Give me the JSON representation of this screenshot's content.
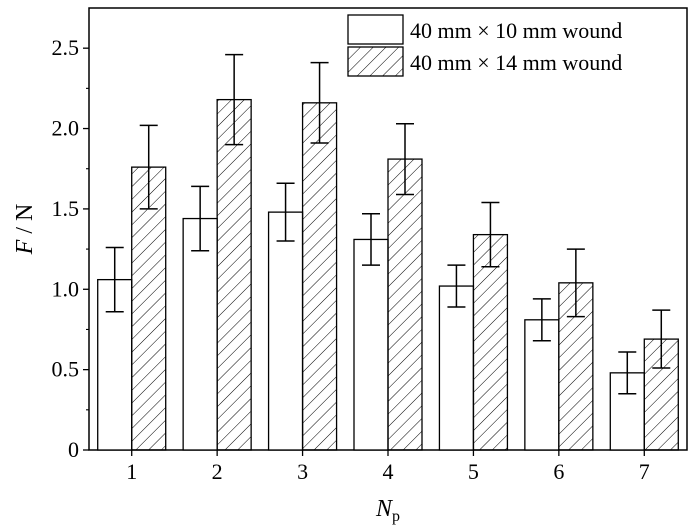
{
  "chart_data": {
    "type": "bar",
    "categories": [
      "1",
      "2",
      "3",
      "4",
      "5",
      "6",
      "7"
    ],
    "series": [
      {
        "name": "40 mm × 10 mm wound",
        "fill": "none",
        "values": [
          1.06,
          1.44,
          1.48,
          1.31,
          1.02,
          0.81,
          0.48
        ],
        "errors": [
          0.2,
          0.2,
          0.18,
          0.16,
          0.13,
          0.13,
          0.13
        ]
      },
      {
        "name": "40 mm × 14 mm wound",
        "fill": "hatch",
        "values": [
          1.76,
          2.18,
          2.16,
          1.81,
          1.34,
          1.04,
          0.69
        ],
        "errors": [
          0.26,
          0.28,
          0.25,
          0.22,
          0.2,
          0.21,
          0.18
        ]
      }
    ],
    "xlabel": {
      "main": "N",
      "sub": "p"
    },
    "ylabel": {
      "main": "F",
      "rest": " / N"
    },
    "ylim": [
      0,
      2.75
    ],
    "yticks": [
      "0",
      "0.5",
      "1.0",
      "1.5",
      "2.0",
      "2.5"
    ],
    "ytick_values": [
      0,
      0.5,
      1.0,
      1.5,
      2.0,
      2.5
    ],
    "grid": false,
    "legend_position": "top-right",
    "colors": {
      "stroke": "#000000",
      "background": "#ffffff"
    }
  }
}
